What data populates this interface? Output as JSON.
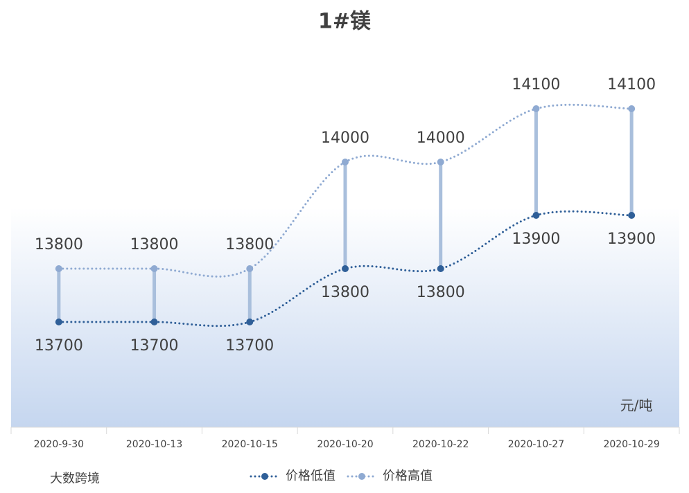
{
  "chart_data": {
    "type": "line",
    "title": "1#镁",
    "categories": [
      "2020-9-30",
      "2020-10-13",
      "2020-10-15",
      "2020-10-20",
      "2020-10-22",
      "2020-10-27",
      "2020-10-29"
    ],
    "series": [
      {
        "name": "价格低值",
        "color": "#2f5f98",
        "values": [
          13700,
          13700,
          13700,
          13800,
          13800,
          13900,
          13900
        ]
      },
      {
        "name": "价格高值",
        "color": "#8faad2",
        "values": [
          13800,
          13800,
          13800,
          14000,
          14000,
          14100,
          14100
        ]
      }
    ],
    "unit": "元/吨",
    "watermark": "大数跨境",
    "high_low_line_color": "#a9bfdc"
  }
}
